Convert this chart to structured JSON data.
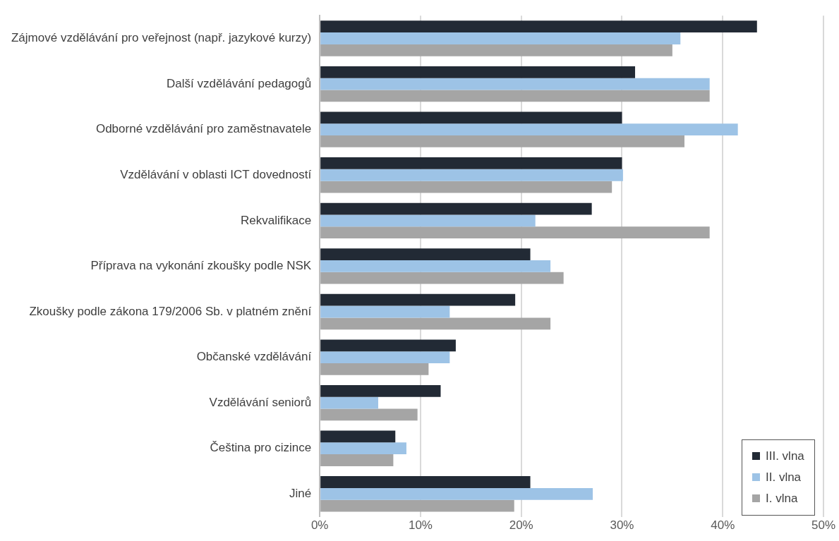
{
  "chart_data": {
    "type": "bar",
    "orientation": "horizontal",
    "categories": [
      "Zájmové vzdělávání pro veřejnost (např. jazykové kurzy)",
      "Další vzdělávání pedagogů",
      "Odborné vzdělávání pro zaměstnavatele",
      "Vzdělávání v oblasti ICT dovedností",
      "Rekvalifikace",
      "Příprava na vykonání zkoušky podle NSK",
      "Zkoušky podle zákona 179/2006 Sb. v platném znění",
      "Občanské vzdělávání",
      "Vzdělávání seniorů",
      "Čeština pro cizince",
      "Jiné"
    ],
    "series": [
      {
        "name": "III. vlna",
        "color": "#222a35",
        "values": [
          43.4,
          31.3,
          30.0,
          30.0,
          27.0,
          20.9,
          19.4,
          13.5,
          12.0,
          7.5,
          20.9
        ]
      },
      {
        "name": "II. vlna",
        "color": "#9dc3e6",
        "values": [
          35.8,
          38.7,
          41.5,
          30.1,
          21.4,
          22.9,
          12.9,
          12.9,
          5.8,
          8.6,
          27.1
        ]
      },
      {
        "name": "I. vlna",
        "color": "#a5a5a5",
        "values": [
          35.0,
          38.7,
          36.2,
          29.0,
          38.7,
          24.2,
          22.9,
          10.8,
          9.7,
          7.3,
          19.3
        ]
      }
    ],
    "xlim": [
      0,
      50
    ],
    "xticks": [
      {
        "value": 0,
        "label": "0%"
      },
      {
        "value": 10,
        "label": "10%"
      },
      {
        "value": 20,
        "label": "20%"
      },
      {
        "value": 30,
        "label": "30%"
      },
      {
        "value": 40,
        "label": "40%"
      },
      {
        "value": 50,
        "label": "50%"
      }
    ],
    "grid": "x",
    "legend": "bottom right"
  }
}
